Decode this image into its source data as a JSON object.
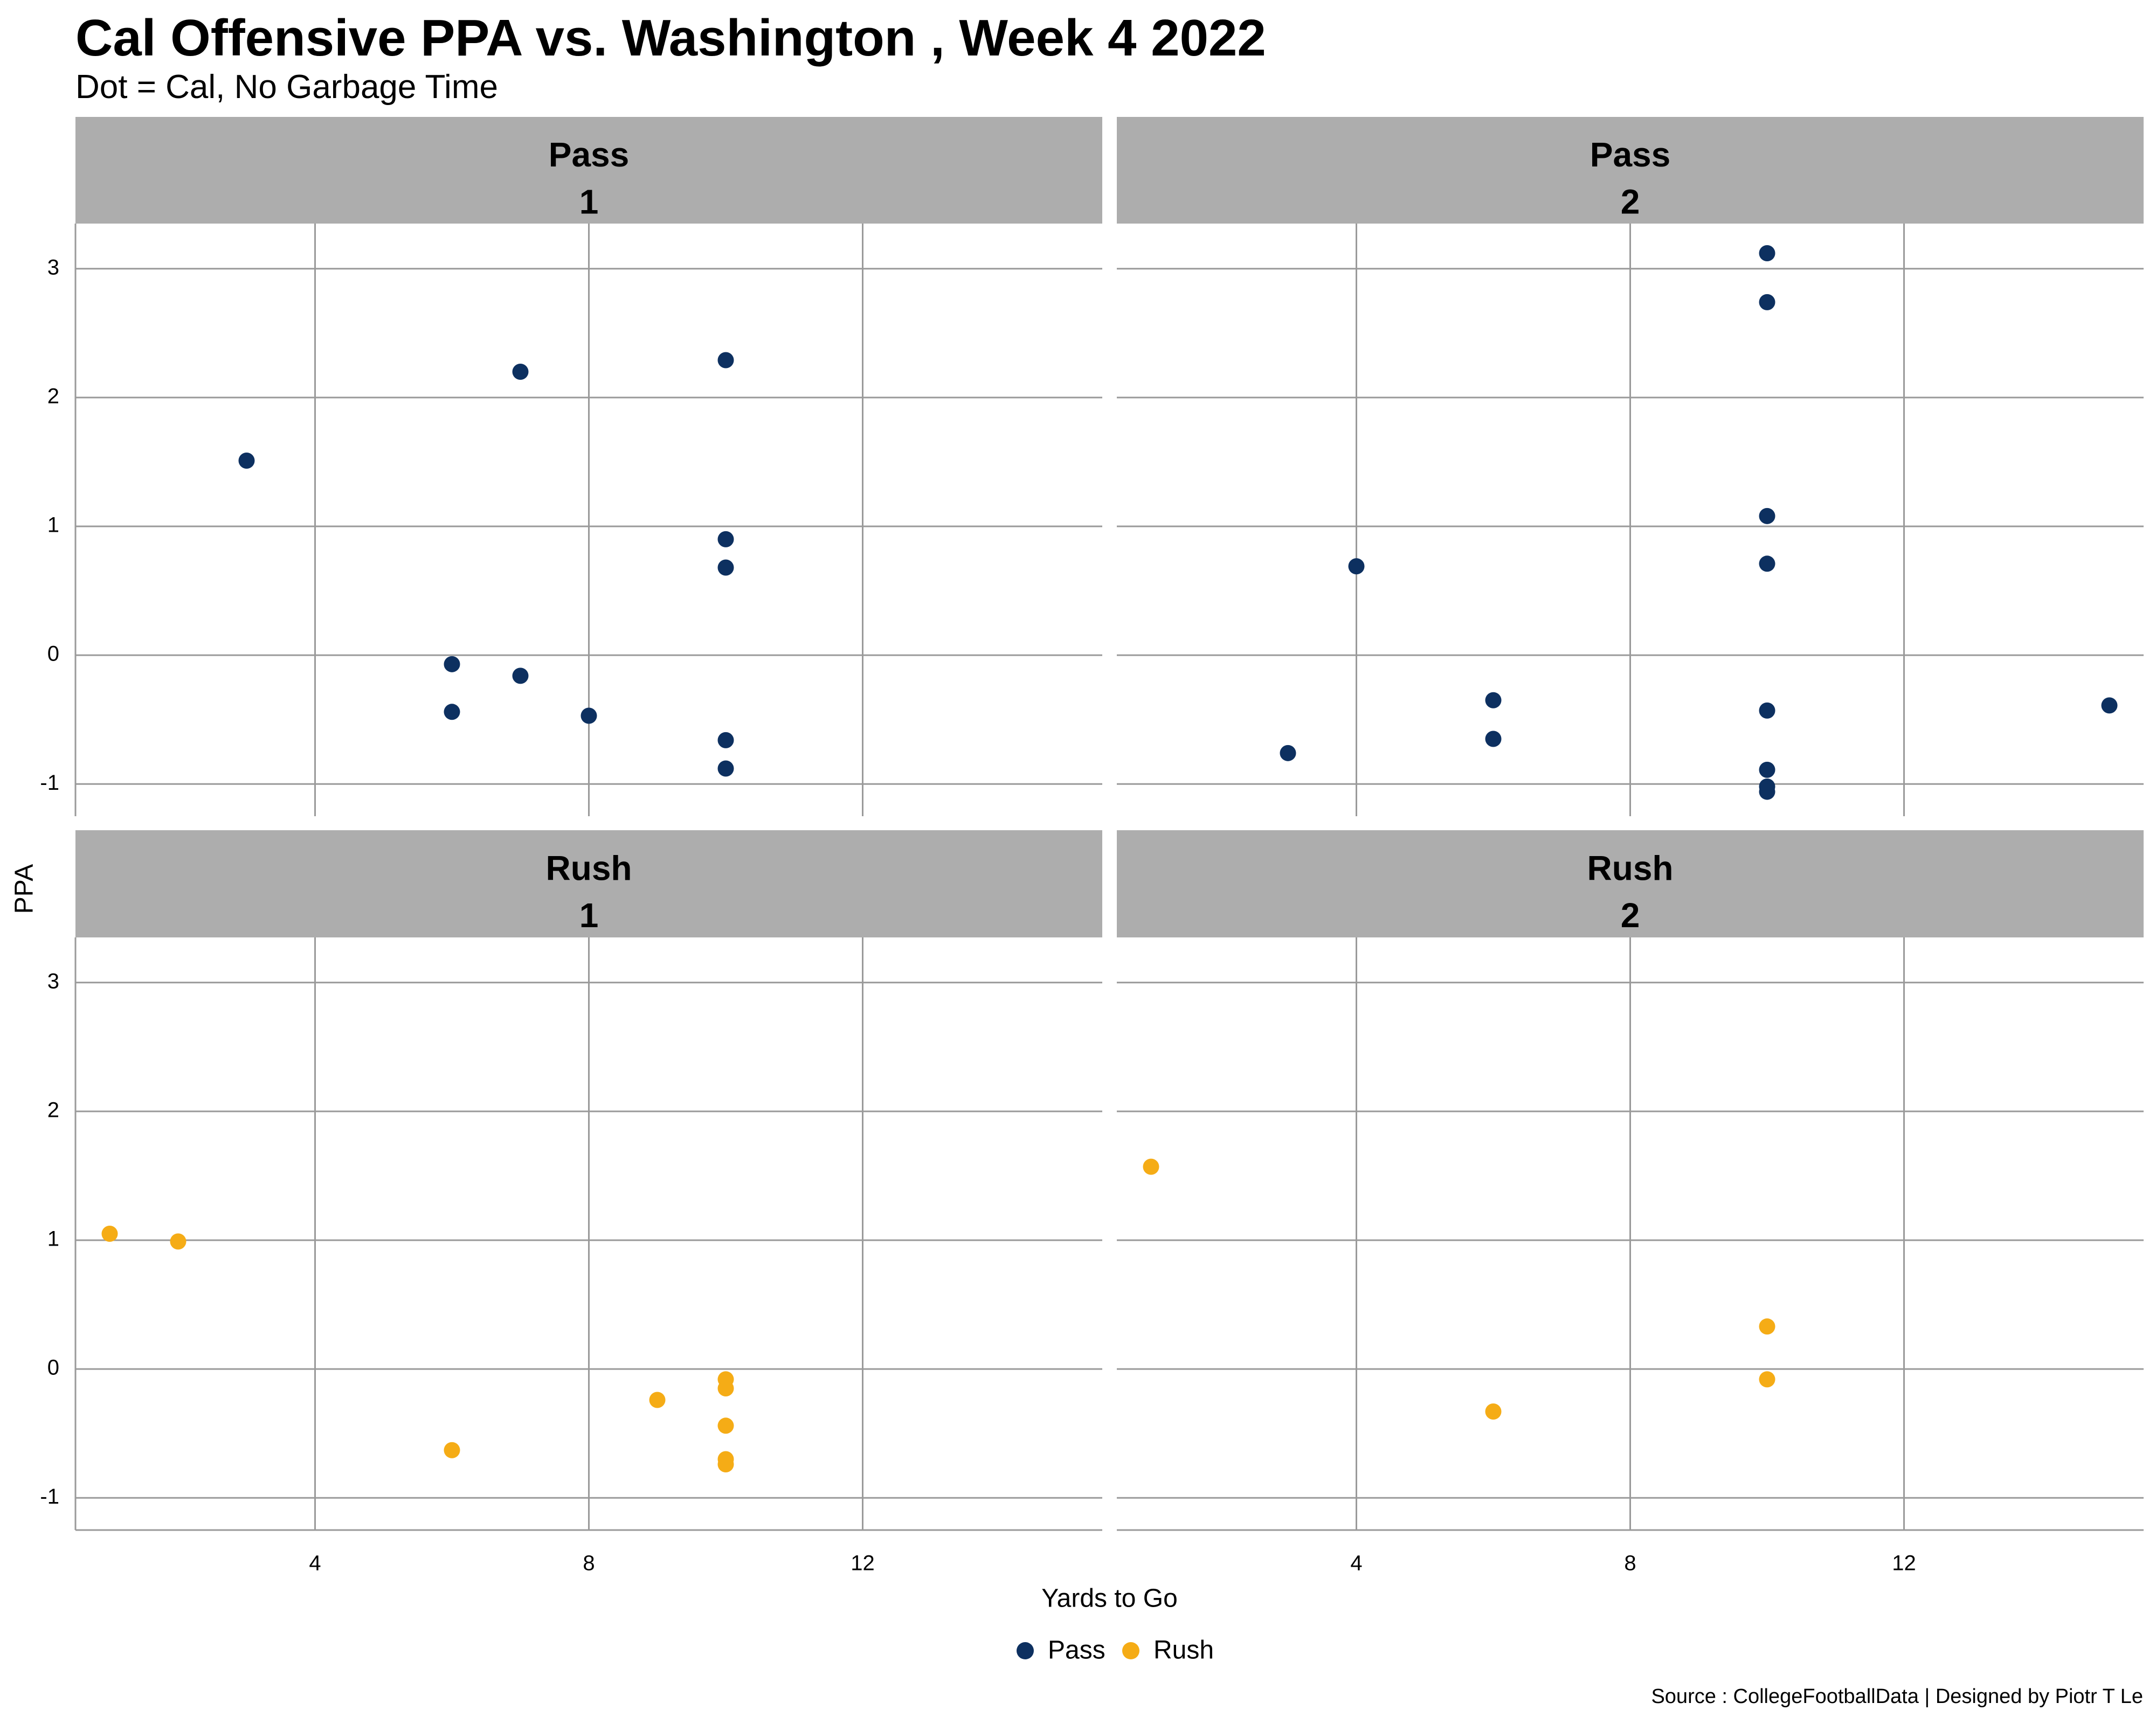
{
  "chart_data": {
    "type": "scatter",
    "title": "Cal Offensive PPA vs. Washington , Week 4 2022",
    "subtitle": "Dot = Cal, No Garbage Time",
    "xlabel": "Yards to Go",
    "ylabel": "PPA",
    "caption": "Source : CollegeFootballData | Designed by Piotr T Le",
    "xlim": [
      0.5,
      15.5
    ],
    "ylim": [
      -1.25,
      3.35
    ],
    "x_ticks": [
      4,
      8,
      12
    ],
    "y_ticks": [
      -1,
      0,
      1,
      2,
      3
    ],
    "x_tick_labels": [
      "4",
      "8",
      "12"
    ],
    "y_tick_labels": [
      "-1",
      "0",
      "1",
      "2",
      "3"
    ],
    "grid": true,
    "legend_position": "bottom",
    "legend": [
      {
        "label": "Pass",
        "color": "#0d3060"
      },
      {
        "label": "Rush",
        "color": "#f5ac16"
      }
    ],
    "panels": [
      {
        "row": 0,
        "col": 0,
        "play_type": "Pass",
        "down": "1",
        "color": "#0d3060",
        "points": [
          {
            "x": 3,
            "y": 1.51
          },
          {
            "x": 7,
            "y": 2.2
          },
          {
            "x": 10,
            "y": 2.29
          },
          {
            "x": 10,
            "y": 0.9
          },
          {
            "x": 10,
            "y": 0.68
          },
          {
            "x": 6,
            "y": -0.07
          },
          {
            "x": 7,
            "y": -0.16
          },
          {
            "x": 6,
            "y": -0.44
          },
          {
            "x": 8,
            "y": -0.47
          },
          {
            "x": 10,
            "y": -0.66
          },
          {
            "x": 10,
            "y": -0.88
          }
        ]
      },
      {
        "row": 0,
        "col": 1,
        "play_type": "Pass",
        "down": "2",
        "color": "#0d3060",
        "points": [
          {
            "x": 10,
            "y": 3.12
          },
          {
            "x": 10,
            "y": 2.74
          },
          {
            "x": 10,
            "y": 1.08
          },
          {
            "x": 10,
            "y": 0.71
          },
          {
            "x": 4,
            "y": 0.69
          },
          {
            "x": 6,
            "y": -0.35
          },
          {
            "x": 10,
            "y": -0.43
          },
          {
            "x": 15,
            "y": -0.39
          },
          {
            "x": 6,
            "y": -0.65
          },
          {
            "x": 3,
            "y": -0.76
          },
          {
            "x": 10,
            "y": -0.89
          },
          {
            "x": 10,
            "y": -1.02
          },
          {
            "x": 10,
            "y": -1.06
          }
        ]
      },
      {
        "row": 1,
        "col": 0,
        "play_type": "Rush",
        "down": "1",
        "color": "#f5ac16",
        "points": [
          {
            "x": 1,
            "y": 1.05
          },
          {
            "x": 2,
            "y": 0.99
          },
          {
            "x": 9,
            "y": -0.24
          },
          {
            "x": 10,
            "y": -0.08
          },
          {
            "x": 10,
            "y": -0.15
          },
          {
            "x": 10,
            "y": -0.44
          },
          {
            "x": 6,
            "y": -0.63
          },
          {
            "x": 10,
            "y": -0.7
          },
          {
            "x": 10,
            "y": -0.74
          }
        ]
      },
      {
        "row": 1,
        "col": 1,
        "play_type": "Rush",
        "down": "2",
        "color": "#f5ac16",
        "points": [
          {
            "x": 1,
            "y": 1.57
          },
          {
            "x": 10,
            "y": 0.33
          },
          {
            "x": 10,
            "y": -0.08
          },
          {
            "x": 6,
            "y": -0.33
          }
        ]
      }
    ]
  }
}
